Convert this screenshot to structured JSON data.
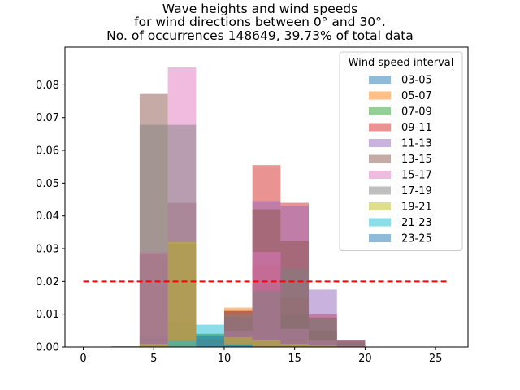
{
  "chart_data": {
    "type": "bar",
    "title_lines": [
      "Wave heights and wind speeds",
      "for wind directions between 0° and 30°.",
      "No. of occurrences 148649, 39.73% of total data"
    ],
    "xlabel": "",
    "ylabel": "",
    "xlim": [
      -1.3,
      27.3
    ],
    "ylim": [
      0,
      0.0915
    ],
    "x_ticks": [
      0,
      5,
      10,
      15,
      20,
      25
    ],
    "x_tick_labels": [
      "0",
      "5",
      "10",
      "15",
      "20",
      "25"
    ],
    "y_ticks": [
      0.0,
      0.01,
      0.02,
      0.03,
      0.04,
      0.05,
      0.06,
      0.07,
      0.08
    ],
    "y_tick_labels": [
      "0.00",
      "0.01",
      "0.02",
      "0.03",
      "0.04",
      "0.05",
      "0.06",
      "0.07",
      "0.08"
    ],
    "bin_edges": [
      2,
      4,
      6,
      8,
      10,
      12,
      14,
      16,
      18,
      20,
      22
    ],
    "legend_title": "Wind speed interval",
    "legend_position": "top-right",
    "bar_alpha": 0.5,
    "series": [
      {
        "name": "03-05",
        "color": "#1f77b4",
        "values": [
          0.0,
          0.001,
          0.0005,
          0.004,
          0.0042,
          0.0015,
          0.0005,
          0.0002,
          0.0,
          0.0
        ]
      },
      {
        "name": "05-07",
        "color": "#ff7f0e",
        "values": [
          0.0,
          0.0005,
          0.001,
          0.0015,
          0.012,
          0.025,
          0.015,
          0.005,
          0.001,
          0.0
        ]
      },
      {
        "name": "07-09",
        "color": "#2ca02c",
        "values": [
          0.0,
          0.0005,
          0.008,
          0.004,
          0.005,
          0.02,
          0.01,
          0.005,
          0.001,
          0.0
        ]
      },
      {
        "name": "09-11",
        "color": "#d62728",
        "values": [
          0.0001,
          0.0285,
          0.0315,
          0.0025,
          0.011,
          0.0555,
          0.044,
          0.01,
          0.002,
          0.0001
        ]
      },
      {
        "name": "11-13",
        "color": "#9467bd",
        "values": [
          0.0001,
          0.003,
          0.0015,
          0.001,
          0.009,
          0.0445,
          0.043,
          0.0175,
          0.0022,
          0.0001
        ]
      },
      {
        "name": "13-15",
        "color": "#8c564b",
        "values": [
          0.0002,
          0.0772,
          0.044,
          0.0002,
          0.011,
          0.042,
          0.0323,
          0.009,
          0.0018,
          0.0001
        ]
      },
      {
        "name": "15-17",
        "color": "#e377c2",
        "values": [
          0.0001,
          0.029,
          0.0853,
          0.0002,
          0.005,
          0.029,
          0.0055,
          0.002,
          0.0005,
          0.0
        ]
      },
      {
        "name": "17-19",
        "color": "#7f7f7f",
        "values": [
          0.0002,
          0.0678,
          0.0678,
          0.0003,
          0.01,
          0.017,
          0.024,
          0.0085,
          0.0012,
          0.0
        ]
      },
      {
        "name": "19-21",
        "color": "#bcbd22",
        "values": [
          0.0,
          0.001,
          0.032,
          0.004,
          0.003,
          0.002,
          0.001,
          0.0005,
          0.0,
          0.0
        ]
      },
      {
        "name": "21-23",
        "color": "#17becf",
        "values": [
          0.0,
          0.0,
          0.002,
          0.0068,
          0.001,
          0.0,
          0.0,
          0.0,
          0.0,
          0.0
        ]
      },
      {
        "name": "23-25",
        "color": "#1f77b4",
        "values": [
          0.0,
          0.0,
          0.0,
          0.0035,
          0.0005,
          0.0,
          0.0,
          0.0,
          0.0,
          0.0
        ]
      }
    ],
    "reference_line": {
      "y": 0.02,
      "x_start": 0,
      "x_end": 26,
      "color": "#ff0000",
      "style": "dashed"
    }
  }
}
